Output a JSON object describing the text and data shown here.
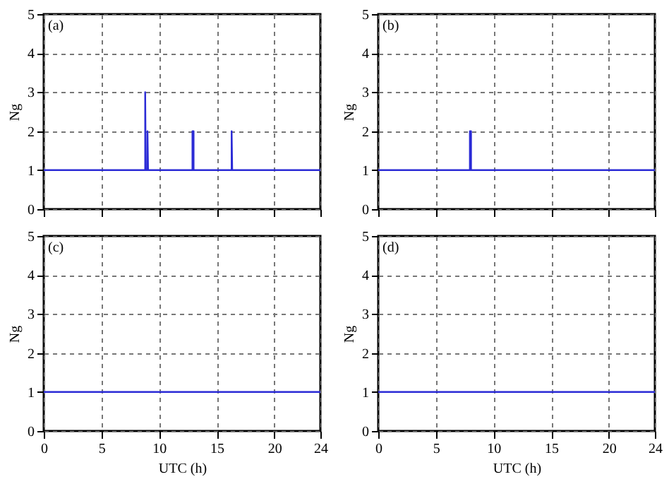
{
  "chart_data": [
    {
      "type": "line",
      "ylabel": "Ng",
      "annotations": [
        "(a)"
      ],
      "xlim": [
        0,
        24
      ],
      "xticks": [
        0,
        5,
        10,
        15,
        20,
        24
      ],
      "ylim": [
        0,
        5
      ],
      "yticks": [
        0,
        1,
        2,
        3,
        4,
        5
      ],
      "grid": true,
      "tick_labels": "y",
      "series": [
        {
          "color": "#2b2bd6",
          "x": [
            0,
            8.8,
            8.8,
            8.85,
            9.0,
            9.0,
            9.05,
            12.9,
            12.9,
            13.0,
            13.0,
            16.3,
            16.3,
            16.35,
            24
          ],
          "values": [
            1,
            1,
            3,
            1,
            1,
            2,
            1,
            1,
            2,
            2,
            1,
            1,
            2,
            1,
            1
          ]
        }
      ]
    },
    {
      "type": "line",
      "ylabel": "Ng",
      "annotations": [
        "(b)"
      ],
      "xlim": [
        0,
        24
      ],
      "xticks": [
        0,
        5,
        10,
        15,
        20,
        24
      ],
      "ylim": [
        0,
        5
      ],
      "yticks": [
        0,
        1,
        2,
        3,
        4,
        5
      ],
      "grid": true,
      "tick_labels": "y",
      "series": [
        {
          "color": "#2b2bd6",
          "x": [
            0,
            7.95,
            7.95,
            8.05,
            8.05,
            24
          ],
          "values": [
            1,
            1,
            2,
            2,
            1,
            1
          ]
        }
      ]
    },
    {
      "type": "line",
      "xlabel": "UTC (h)",
      "ylabel": "Ng",
      "annotations": [
        "(c)"
      ],
      "xlim": [
        0,
        24
      ],
      "xticks": [
        0,
        5,
        10,
        15,
        20,
        24
      ],
      "ylim": [
        0,
        5
      ],
      "yticks": [
        0,
        1,
        2,
        3,
        4,
        5
      ],
      "grid": true,
      "series": [
        {
          "color": "#2b2bd6",
          "x": [
            0,
            24
          ],
          "values": [
            1,
            1
          ]
        }
      ]
    },
    {
      "type": "line",
      "xlabel": "UTC (h)",
      "ylabel": "Ng",
      "annotations": [
        "(d)"
      ],
      "xlim": [
        0,
        24
      ],
      "xticks": [
        0,
        5,
        10,
        15,
        20,
        24
      ],
      "ylim": [
        0,
        5
      ],
      "yticks": [
        0,
        1,
        2,
        3,
        4,
        5
      ],
      "grid": true,
      "series": [
        {
          "color": "#2b2bd6",
          "x": [
            0,
            24
          ],
          "values": [
            1,
            1
          ]
        }
      ]
    }
  ]
}
